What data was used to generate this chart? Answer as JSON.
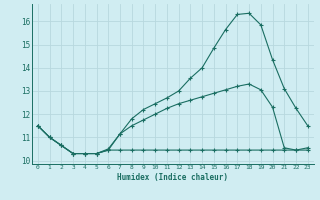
{
  "xlabel": "Humidex (Indice chaleur)",
  "background_color": "#d0edf2",
  "grid_color": "#b8d8de",
  "line_color": "#1a6e62",
  "xlim": [
    -0.5,
    23.5
  ],
  "ylim": [
    9.85,
    16.75
  ],
  "yticks": [
    10,
    11,
    12,
    13,
    14,
    15,
    16
  ],
  "xticks": [
    0,
    1,
    2,
    3,
    4,
    5,
    6,
    7,
    8,
    9,
    10,
    11,
    12,
    13,
    14,
    15,
    16,
    17,
    18,
    19,
    20,
    21,
    22,
    23
  ],
  "line1_x": [
    0,
    1,
    2,
    3,
    4,
    5,
    6,
    7,
    8,
    9,
    10,
    11,
    12,
    13,
    14,
    15,
    16,
    17,
    18,
    19,
    20,
    21,
    22,
    23
  ],
  "line1_y": [
    11.5,
    11.0,
    10.65,
    10.3,
    10.3,
    10.3,
    10.45,
    11.15,
    11.8,
    12.2,
    12.45,
    12.7,
    13.0,
    13.55,
    14.0,
    14.85,
    15.65,
    16.3,
    16.35,
    15.85,
    14.35,
    13.1,
    12.25,
    11.5
  ],
  "line2_x": [
    0,
    1,
    2,
    3,
    4,
    5,
    6,
    7,
    8,
    9,
    10,
    11,
    12,
    13,
    14,
    15,
    16,
    17,
    18,
    19,
    20,
    21,
    22,
    23
  ],
  "line2_y": [
    11.5,
    11.0,
    10.65,
    10.3,
    10.3,
    10.3,
    10.5,
    11.15,
    11.5,
    11.75,
    12.0,
    12.25,
    12.45,
    12.6,
    12.75,
    12.9,
    13.05,
    13.2,
    13.3,
    13.05,
    12.3,
    10.55,
    10.45,
    10.45
  ],
  "line3_x": [
    0,
    1,
    2,
    3,
    4,
    5,
    6,
    7,
    8,
    9,
    10,
    11,
    12,
    13,
    14,
    15,
    16,
    17,
    18,
    19,
    20,
    21,
    22,
    23
  ],
  "line3_y": [
    11.5,
    11.0,
    10.65,
    10.3,
    10.3,
    10.3,
    10.45,
    10.45,
    10.45,
    10.45,
    10.45,
    10.45,
    10.45,
    10.45,
    10.45,
    10.45,
    10.45,
    10.45,
    10.45,
    10.45,
    10.45,
    10.45,
    10.45,
    10.55
  ]
}
